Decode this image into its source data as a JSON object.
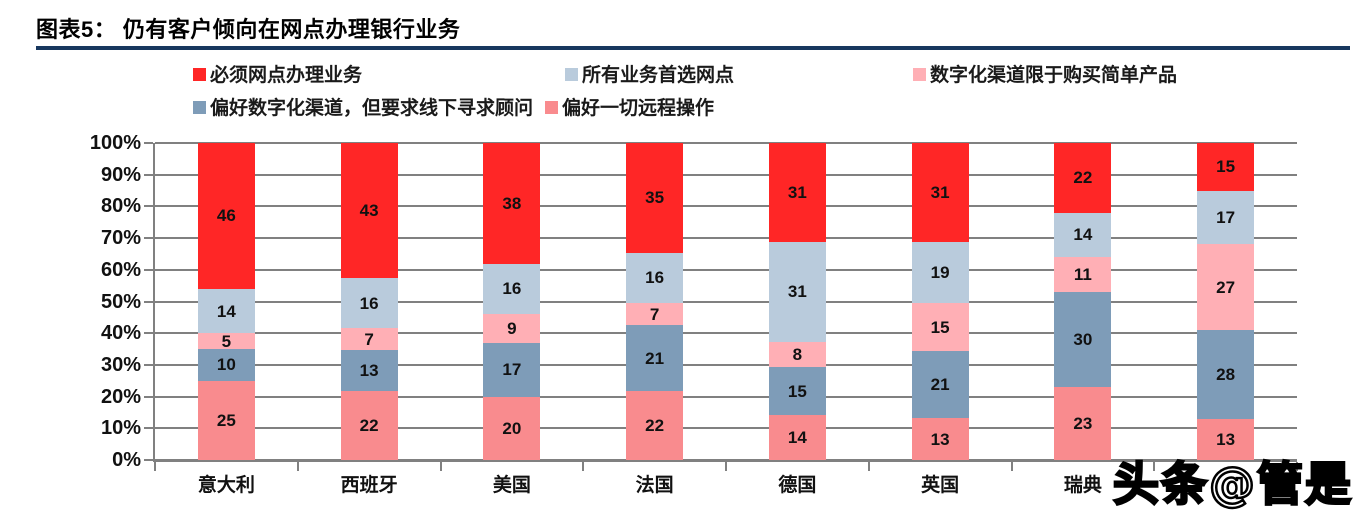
{
  "header": {
    "title": "图表5：  仍有客户倾向在网点办理银行业务"
  },
  "watermark": "头条@管是",
  "colors": {
    "title_rule": "#17375E",
    "grid": "#808080",
    "red": "#FF2626",
    "light_blue": "#B9CBDC",
    "pink": "#FFAFB5",
    "steel_blue": "#7E9CB8",
    "salmon": "#F98B8E"
  },
  "chart_data": {
    "type": "bar",
    "stacked": true,
    "percent": true,
    "title": "仍有客户倾向在网点办理银行业务",
    "xlabel": "",
    "ylabel": "",
    "ylim": [
      0,
      100
    ],
    "grid": true,
    "legend_position": "top",
    "y_ticks": [
      "100%",
      "90%",
      "80%",
      "70%",
      "60%",
      "50%",
      "40%",
      "30%",
      "20%",
      "10%",
      "0%"
    ],
    "categories": [
      "意大利",
      "西班牙",
      "美国",
      "法国",
      "德国",
      "英国",
      "瑞典",
      ""
    ],
    "series": [
      {
        "name": "偏好一切远程操作",
        "color": "#F98B8E",
        "values": [
          25,
          22,
          20,
          22,
          14,
          13,
          23,
          13
        ]
      },
      {
        "name": "偏好数字化渠道，但要求线下寻求顾问",
        "color": "#7E9CB8",
        "values": [
          10,
          13,
          17,
          21,
          15,
          21,
          30,
          28
        ]
      },
      {
        "name": "数字化渠道限于购买简单产品",
        "color": "#FFAFB5",
        "values": [
          5,
          7,
          9,
          7,
          8,
          15,
          11,
          27
        ]
      },
      {
        "name": "所有业务首选网点",
        "color": "#B9CBDC",
        "values": [
          14,
          16,
          16,
          16,
          31,
          19,
          14,
          17
        ]
      },
      {
        "name": "必须网点办理业务",
        "color": "#FF2626",
        "values": [
          46,
          43,
          38,
          35,
          31,
          31,
          22,
          15
        ]
      }
    ],
    "legend_order": [
      "必须网点办理业务",
      "所有业务首选网点",
      "数字化渠道限于购买简单产品",
      "偏好数字化渠道，但要求线下寻求顾问",
      "偏好一切远程操作"
    ]
  }
}
